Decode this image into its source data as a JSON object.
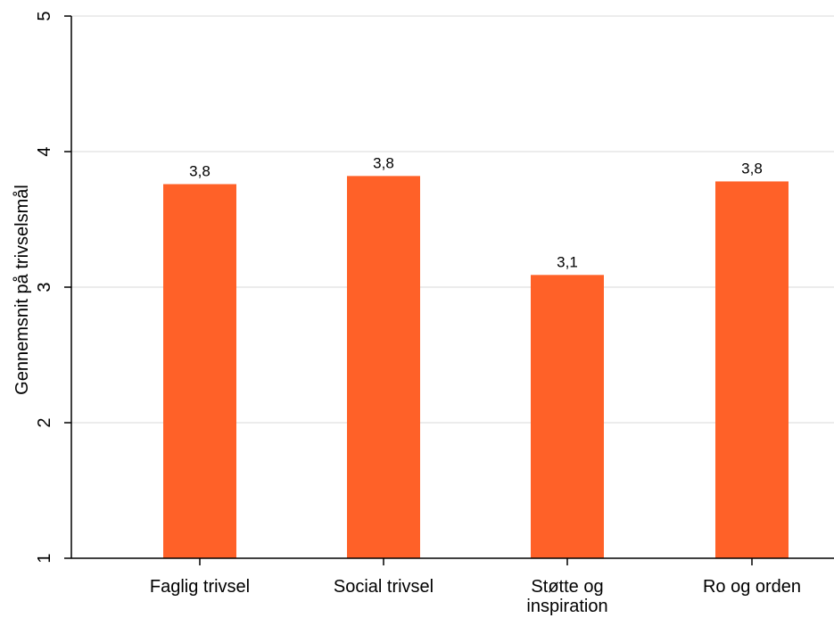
{
  "chart_data": {
    "type": "bar",
    "categories": [
      "Faglig trivsel",
      "Social trivsel",
      "Støtte og inspiration",
      "Ro og orden"
    ],
    "category_lines": [
      [
        "Faglig trivsel"
      ],
      [
        "Social trivsel"
      ],
      [
        "Støtte og",
        "inspiration"
      ],
      [
        "Ro og orden"
      ]
    ],
    "values": [
      3.76,
      3.82,
      3.09,
      3.78
    ],
    "data_labels": [
      "3,8",
      "3,8",
      "3,1",
      "3,8"
    ],
    "ylabel": "Gennemsnit på trivselsmål",
    "xlabel": "",
    "ylim": [
      1,
      5
    ],
    "yticks": [
      1,
      2,
      3,
      4,
      5
    ],
    "ytick_labels": [
      "1",
      "2",
      "3",
      "4",
      "5"
    ],
    "grid": true,
    "bar_color": "#ff6128",
    "grid_color": "#e6e6e6"
  }
}
